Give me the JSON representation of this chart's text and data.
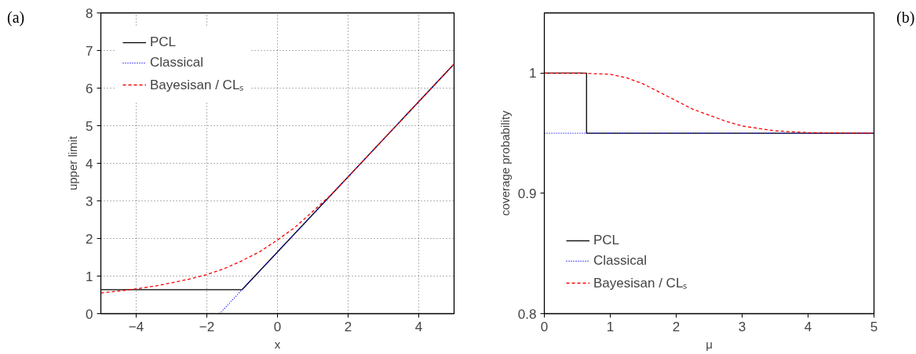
{
  "chart_data": [
    {
      "type": "line",
      "ylabel": "upper limit",
      "xlabel": "x",
      "annotations": [
        "(a)"
      ],
      "xlim": [
        -5,
        5
      ],
      "ylim": [
        0,
        8
      ],
      "xticks": [
        -4,
        -2,
        0,
        2,
        4
      ],
      "yticks": [
        0,
        1,
        2,
        3,
        4,
        5,
        6,
        7,
        8
      ],
      "grid": true,
      "legend": "top left",
      "series": [
        {
          "name": "PCL",
          "color": "#000000",
          "line_style": "solid",
          "x": [
            -5,
            -1,
            5
          ],
          "values": [
            0.64,
            0.64,
            6.64
          ]
        },
        {
          "name": "Classical",
          "color": "#0000ff",
          "line_style": "dotted",
          "x": [
            -1.64,
            -1,
            5
          ],
          "values": [
            0,
            0.64,
            6.64
          ]
        },
        {
          "name": "Bayesisan / CLₛ",
          "color": "#ff0000",
          "line_style": "dashed",
          "x": [
            -5,
            -4.5,
            -4,
            -3.5,
            -3,
            -2.5,
            -2,
            -1.5,
            -1,
            -0.5,
            0,
            0.5,
            1,
            1.5,
            2,
            2.5,
            3,
            4,
            5
          ],
          "values": [
            0.55,
            0.6,
            0.66,
            0.73,
            0.82,
            0.92,
            1.04,
            1.2,
            1.41,
            1.65,
            1.96,
            2.3,
            2.72,
            3.15,
            3.64,
            4.14,
            4.64,
            5.64,
            6.64
          ]
        }
      ]
    },
    {
      "type": "line",
      "ylabel": "coverage probability",
      "xlabel": "μ",
      "annotations": [
        "(b)"
      ],
      "xlim": [
        0,
        5
      ],
      "ylim": [
        0.8,
        1.05
      ],
      "xticks": [
        0,
        1,
        2,
        3,
        4,
        5
      ],
      "yticks": [
        0.8,
        0.9,
        1
      ],
      "grid": false,
      "legend": "bottom left",
      "series": [
        {
          "name": "PCL",
          "color": "#000000",
          "line_style": "solid",
          "x": [
            0,
            0.64,
            0.64,
            5
          ],
          "values": [
            1,
            1,
            0.95,
            0.95
          ]
        },
        {
          "name": "Classical",
          "color": "#0000ff",
          "line_style": "dotted",
          "x": [
            0,
            5
          ],
          "values": [
            0.95,
            0.95
          ]
        },
        {
          "name": "Bayesisan / CLₛ",
          "color": "#ff0000",
          "line_style": "dashed",
          "x": [
            0,
            0.5,
            1,
            1.25,
            1.5,
            1.75,
            2,
            2.25,
            2.5,
            2.75,
            3,
            3.5,
            4,
            5
          ],
          "values": [
            1,
            1,
            0.999,
            0.996,
            0.991,
            0.984,
            0.977,
            0.97,
            0.965,
            0.96,
            0.956,
            0.952,
            0.9505,
            0.95
          ]
        }
      ]
    }
  ]
}
